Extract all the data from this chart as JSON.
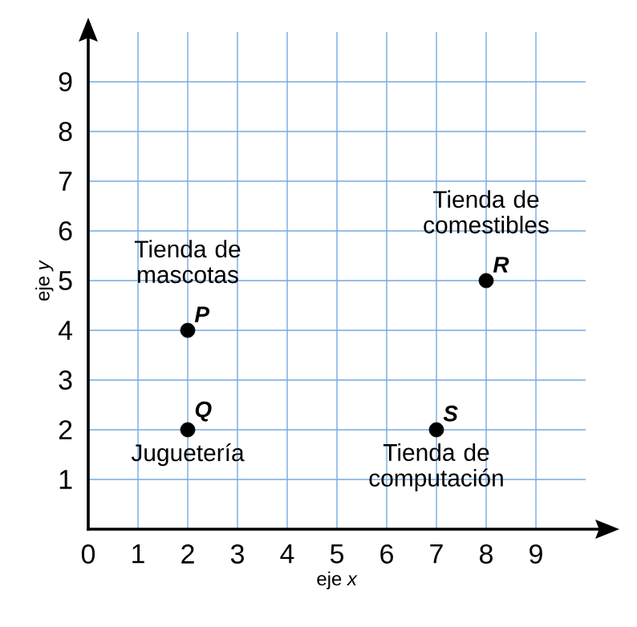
{
  "chart_data": {
    "type": "scatter",
    "xlabel": "eje *x*",
    "ylabel": "eje *y*",
    "x": [
      2,
      2,
      8,
      7
    ],
    "values": [
      4,
      2,
      5,
      2
    ],
    "color": "#000000",
    "marker": "circle",
    "value_labels": [
      "P",
      "Q",
      "R",
      "S"
    ],
    "annotations": [
      {
        "text": "Tienda de mascotas",
        "x": 2,
        "y": 4
      },
      {
        "text": "Juguetería",
        "x": 2,
        "y": 2
      },
      {
        "text": "Tienda de comestibles",
        "x": 8,
        "y": 5
      },
      {
        "text": "Tienda de computación",
        "x": 7,
        "y": 2
      }
    ],
    "xlim": [
      0,
      10
    ],
    "ylim": [
      0,
      10
    ],
    "xticks": [
      0,
      1,
      2,
      3,
      4,
      5,
      6,
      7,
      8,
      9
    ],
    "yticks": [
      1,
      2,
      3,
      4,
      5,
      6,
      7,
      8,
      9
    ],
    "grid": true
  }
}
